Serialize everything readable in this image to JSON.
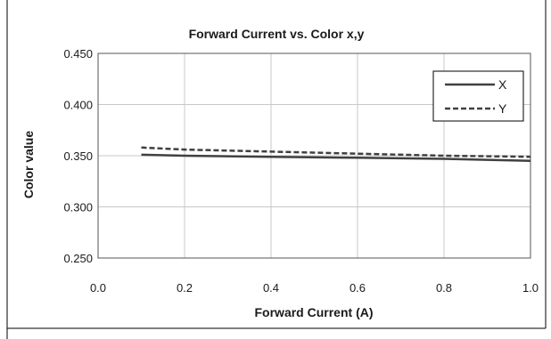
{
  "chart_data": {
    "type": "line",
    "title": "Forward Current vs. Color x,y",
    "xlabel": "Forward Current (A)",
    "ylabel": "Color value",
    "xlim": [
      0.0,
      1.0
    ],
    "ylim": [
      0.25,
      0.45
    ],
    "x_ticks": [
      "0.0",
      "0.2",
      "0.4",
      "0.6",
      "0.8",
      "1.0"
    ],
    "y_ticks": [
      "0.450",
      "0.400",
      "0.350",
      "0.300",
      "0.250"
    ],
    "grid": true,
    "legend_position": "top-right",
    "series": [
      {
        "name": "X",
        "style": "solid",
        "color": "#404040",
        "x": [
          0.1,
          0.2,
          0.4,
          0.6,
          0.8,
          1.0
        ],
        "y": [
          0.351,
          0.35,
          0.349,
          0.348,
          0.347,
          0.345
        ]
      },
      {
        "name": "Y",
        "style": "dashed",
        "color": "#404040",
        "x": [
          0.1,
          0.2,
          0.4,
          0.6,
          0.8,
          1.0
        ],
        "y": [
          0.358,
          0.356,
          0.354,
          0.352,
          0.35,
          0.349
        ]
      }
    ]
  }
}
